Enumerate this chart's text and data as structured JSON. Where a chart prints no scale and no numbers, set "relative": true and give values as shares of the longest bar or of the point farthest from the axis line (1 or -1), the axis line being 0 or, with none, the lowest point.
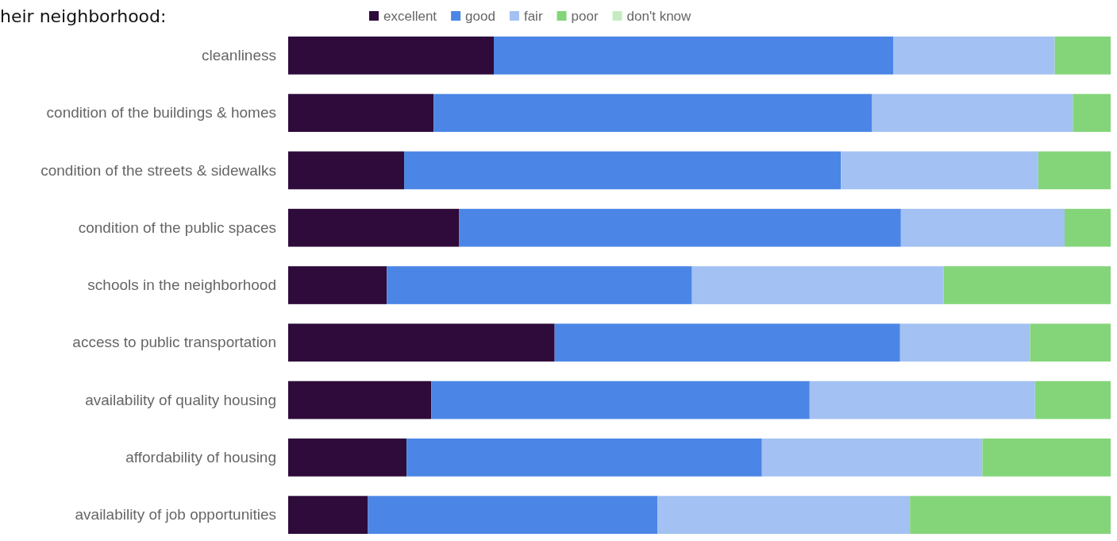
{
  "chart_data": {
    "type": "bar",
    "orientation": "horizontal",
    "stacked": true,
    "relative": true,
    "title": "heir neighborhood:",
    "legend": "top",
    "categories": [
      "cleanliness",
      "condition of the buildings & homes",
      "condition of the streets & sidewalks",
      "condition of the public spaces",
      "schools in the neighborhood",
      "access to public transportation",
      "availability of quality housing",
      "affordability of housing",
      "availability of job opportunities"
    ],
    "series": [
      {
        "name": "excellent",
        "color": "#2e0b3b",
        "values": [
          0.25,
          0.177,
          0.141,
          0.208,
          0.12,
          0.324,
          0.174,
          0.144,
          0.097
        ]
      },
      {
        "name": "good",
        "color": "#4b86e6",
        "values": [
          0.486,
          0.533,
          0.531,
          0.537,
          0.371,
          0.42,
          0.46,
          0.432,
          0.352
        ]
      },
      {
        "name": "fair",
        "color": "#a3c1f2",
        "values": [
          0.196,
          0.244,
          0.24,
          0.199,
          0.306,
          0.158,
          0.274,
          0.268,
          0.307
        ]
      },
      {
        "name": "poor",
        "color": "#84d57a",
        "values": [
          0.068,
          0.046,
          0.088,
          0.056,
          0.203,
          0.098,
          0.092,
          0.156,
          0.244
        ]
      },
      {
        "name": "don't know",
        "color": "#c5ecc0",
        "values": [
          0,
          0,
          0,
          0,
          0,
          0,
          0,
          0,
          0
        ]
      }
    ]
  }
}
